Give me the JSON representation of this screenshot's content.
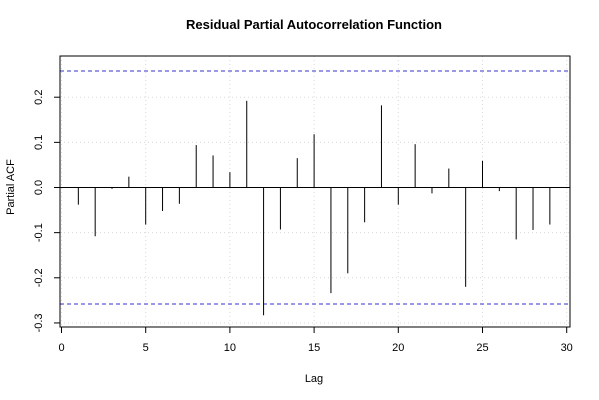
{
  "chart_data": {
    "type": "bar",
    "title": "Residual Partial Autocorrelation Function",
    "xlabel": "Lag",
    "ylabel": "Partial ACF",
    "xlim": [
      0,
      30
    ],
    "ylim": [
      -0.3,
      0.26
    ],
    "x_ticks": [
      "0",
      "5",
      "10",
      "15",
      "20",
      "25",
      "30"
    ],
    "y_ticks": [
      "-0.3",
      "-0.2",
      "-0.1",
      "0.0",
      "0.1",
      "0.2"
    ],
    "grid": true,
    "confidence_bound": 0.258,
    "bound_color": "#3333cc",
    "lags": [
      1,
      2,
      3,
      4,
      5,
      6,
      7,
      8,
      9,
      10,
      11,
      12,
      13,
      14,
      15,
      16,
      17,
      18,
      19,
      20,
      21,
      22,
      23,
      24,
      25,
      26,
      27,
      28,
      29
    ],
    "values": [
      -0.038,
      -0.108,
      -0.003,
      0.024,
      -0.082,
      -0.052,
      -0.036,
      0.094,
      0.071,
      0.034,
      0.192,
      -0.283,
      -0.093,
      0.065,
      0.118,
      -0.234,
      -0.19,
      -0.077,
      0.182,
      -0.038,
      0.096,
      -0.013,
      0.042,
      -0.22,
      0.059,
      -0.008,
      -0.115,
      -0.094,
      -0.082
    ]
  }
}
